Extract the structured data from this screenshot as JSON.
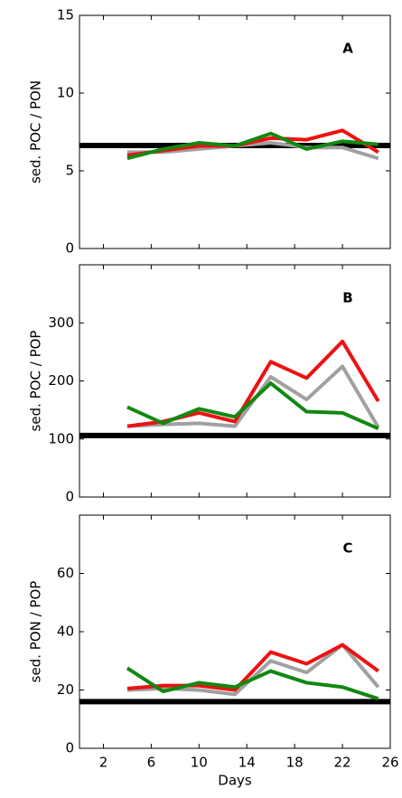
{
  "chart_data": [
    {
      "type": "line",
      "ylabel": "sed. POC / PON",
      "annotation": "A",
      "x": [
        4,
        7,
        10,
        13,
        16,
        19,
        22,
        25
      ],
      "xlim": [
        0,
        26
      ],
      "xticks": [
        2,
        6,
        10,
        14,
        18,
        22,
        26
      ],
      "ylim": [
        0,
        15
      ],
      "yticks": [
        0,
        5,
        10,
        15
      ],
      "hline": 6.63,
      "series": [
        {
          "color": "#a0a0a0",
          "values": [
            6.2,
            6.2,
            6.4,
            6.6,
            6.8,
            6.5,
            6.5,
            5.8
          ]
        },
        {
          "color": "#ee1111",
          "values": [
            6.0,
            6.3,
            6.6,
            6.6,
            7.1,
            7.0,
            7.6,
            6.2
          ]
        },
        {
          "color": "#118811",
          "values": [
            5.8,
            6.4,
            6.8,
            6.6,
            7.4,
            6.4,
            6.9,
            6.7
          ]
        }
      ]
    },
    {
      "type": "line",
      "ylabel": "sed. POC / POP",
      "annotation": "B",
      "x": [
        4,
        7,
        10,
        13,
        16,
        19,
        22,
        25
      ],
      "xlim": [
        0,
        26
      ],
      "xticks": [
        2,
        6,
        10,
        14,
        18,
        22,
        26
      ],
      "ylim": [
        0,
        400
      ],
      "yticks": [
        0,
        100,
        200,
        300
      ],
      "hline": 106,
      "series": [
        {
          "color": "#a0a0a0",
          "values": [
            122,
            125,
            127,
            122,
            207,
            168,
            225,
            120
          ]
        },
        {
          "color": "#ee1111",
          "values": [
            122,
            130,
            145,
            130,
            233,
            205,
            268,
            165
          ]
        },
        {
          "color": "#118811",
          "values": [
            155,
            127,
            152,
            138,
            196,
            147,
            145,
            118
          ]
        }
      ]
    },
    {
      "type": "line",
      "ylabel": "sed. PON / POP",
      "annotation": "C",
      "xlabel": "Days",
      "x": [
        4,
        7,
        10,
        13,
        16,
        19,
        22,
        25
      ],
      "xlim": [
        0,
        26
      ],
      "xticks": [
        2,
        6,
        10,
        14,
        18,
        22,
        26
      ],
      "ylim": [
        0,
        80
      ],
      "yticks": [
        0,
        20,
        40,
        60
      ],
      "hline": 16,
      "series": [
        {
          "color": "#a0a0a0",
          "values": [
            20,
            20.5,
            20,
            18.5,
            30,
            26,
            35.5,
            21
          ]
        },
        {
          "color": "#ee1111",
          "values": [
            20.5,
            21.5,
            21.5,
            20,
            33,
            29,
            35.5,
            26.5
          ]
        },
        {
          "color": "#118811",
          "values": [
            27.5,
            19.5,
            22.5,
            21,
            26.5,
            22.5,
            21,
            17
          ]
        }
      ]
    }
  ]
}
